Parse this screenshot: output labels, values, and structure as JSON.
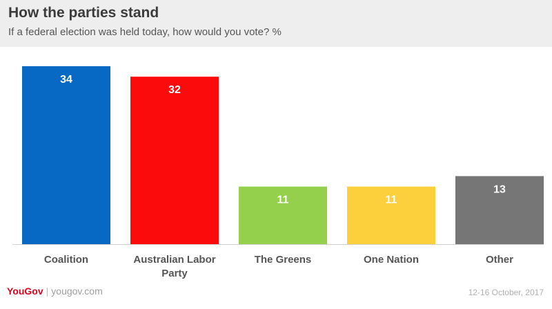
{
  "header": {
    "title": "How the parties stand",
    "subtitle": "If a federal election was held today, how would you vote? %"
  },
  "footer": {
    "brand": "YouGov",
    "site": "yougov.com",
    "date": "12-16 October, 2017"
  },
  "chart_data": {
    "type": "bar",
    "categories": [
      "Coalition",
      "Australian Labor Party",
      "The Greens",
      "One Nation",
      "Other"
    ],
    "category_lines": [
      [
        "Coalition"
      ],
      [
        "Australian Labor",
        "Party"
      ],
      [
        "The Greens"
      ],
      [
        "One Nation"
      ],
      [
        "Other"
      ]
    ],
    "values": [
      34,
      32,
      11,
      11,
      13
    ],
    "colors": [
      "#0869c4",
      "#fb0b0b",
      "#95d04d",
      "#fcd03c",
      "#767676"
    ],
    "label_color": "#ffffff",
    "ylim": [
      0,
      34
    ],
    "grid": false,
    "legend": "none"
  }
}
